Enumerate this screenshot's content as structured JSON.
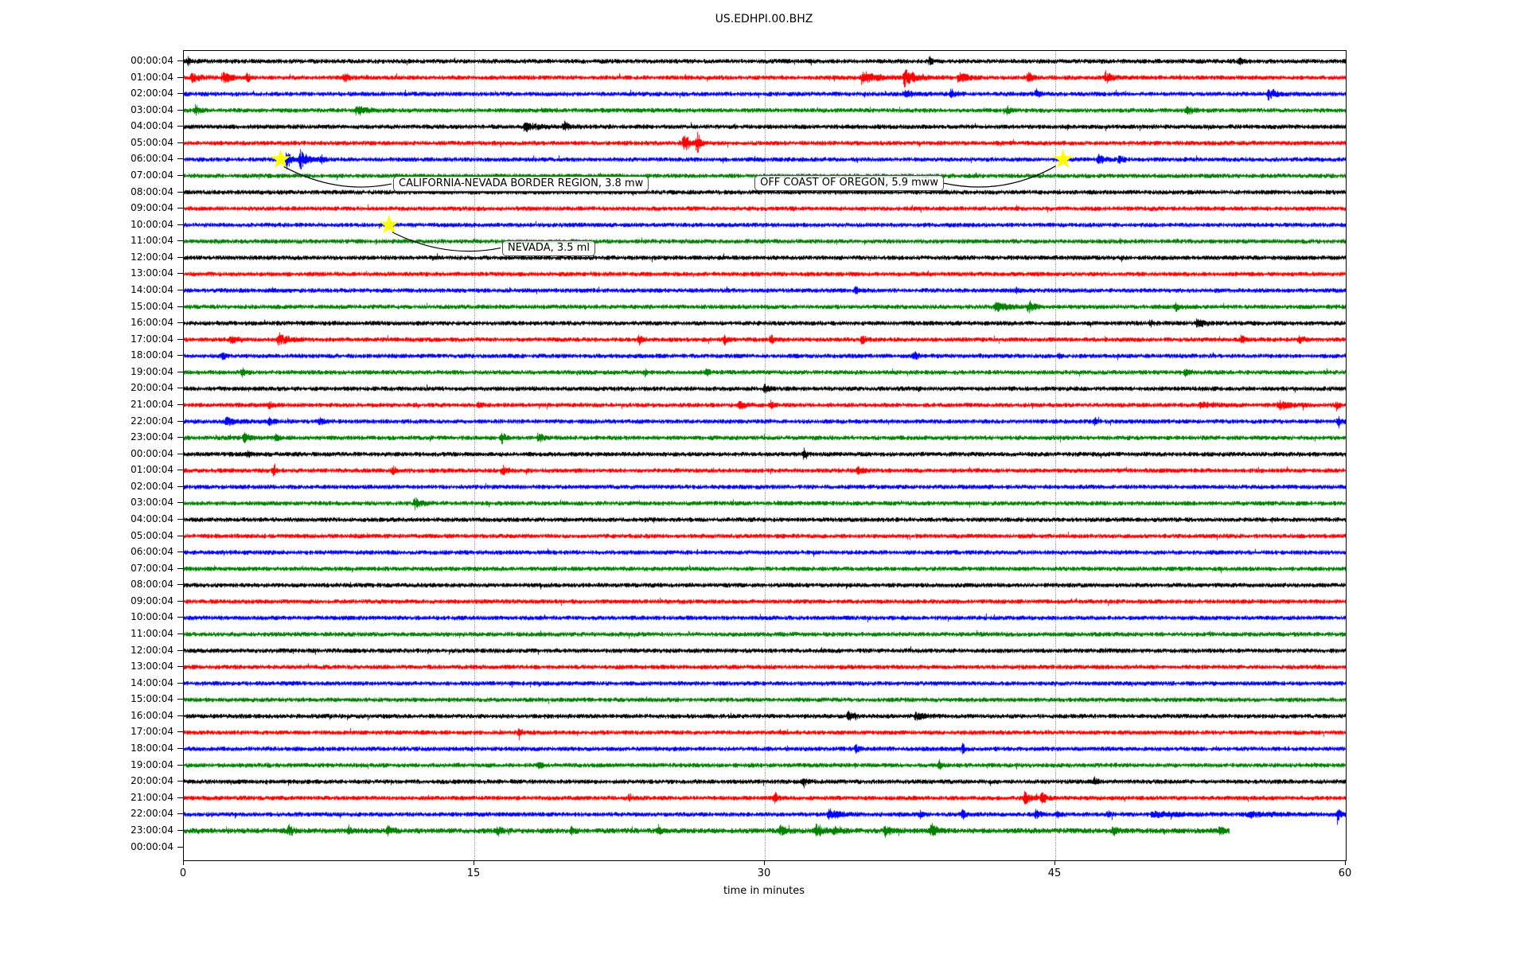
{
  "chart_data": {
    "type": "line",
    "subtype": "seismogram-helicorder-dayplot",
    "title": "US.EDHPI.00.BHZ",
    "xlabel": "time in minutes",
    "x_range": [
      0,
      60
    ],
    "x_ticks": [
      0,
      15,
      30,
      45,
      60
    ],
    "x_tick_labels": [
      "0",
      "15",
      "30",
      "45",
      "60"
    ],
    "x_gridlines": [
      15,
      30,
      45
    ],
    "grid_color": "#9a9a9a",
    "color_cycle": [
      "#000000",
      "#ff0000",
      "#0000ff",
      "#008000"
    ],
    "star_color": "#ffff00",
    "annotation_box": {
      "fill": "rgba(255,255,255,0.75)",
      "border": "#4d4d4d"
    },
    "rows": [
      {
        "label": "00:00:04",
        "events": [
          [
            0.2,
            0.3,
            5
          ],
          [
            38.5,
            0.3,
            5
          ],
          [
            54.5,
            0.2,
            6
          ]
        ]
      },
      {
        "label": "01:00:04",
        "events": [
          [
            0.4,
            0.8,
            7
          ],
          [
            2.0,
            0.8,
            8
          ],
          [
            3.2,
            0.4,
            7
          ],
          [
            8.3,
            0.3,
            9
          ],
          [
            35.0,
            1.6,
            9
          ],
          [
            37.2,
            1.2,
            10
          ],
          [
            40.0,
            0.8,
            8
          ],
          [
            43.6,
            0.4,
            8
          ],
          [
            47.6,
            0.6,
            8
          ]
        ]
      },
      {
        "label": "02:00:04",
        "events": [
          [
            37.2,
            0.8,
            5
          ],
          [
            39.6,
            0.6,
            6
          ],
          [
            44.0,
            0.4,
            6
          ],
          [
            56.0,
            0.7,
            9
          ]
        ]
      },
      {
        "label": "03:00:04",
        "events": [
          [
            0.6,
            0.3,
            8
          ],
          [
            8.9,
            0.9,
            7
          ],
          [
            42.5,
            0.4,
            5
          ],
          [
            51.8,
            0.5,
            6
          ]
        ]
      },
      {
        "label": "04:00:04",
        "events": [
          [
            17.6,
            1.2,
            6
          ],
          [
            19.6,
            0.7,
            6
          ]
        ]
      },
      {
        "label": "05:00:04",
        "events": [
          [
            25.8,
            0.5,
            14
          ],
          [
            26.5,
            0.3,
            18
          ]
        ]
      },
      {
        "label": "06:00:04",
        "events": [
          [
            5.3,
            0.5,
            13
          ],
          [
            6.0,
            0.8,
            11
          ],
          [
            7.1,
            0.4,
            6
          ],
          [
            47.2,
            0.7,
            6
          ],
          [
            48.3,
            0.4,
            5
          ]
        ]
      },
      {
        "label": "07:00:04",
        "events": []
      },
      {
        "label": "08:00:04",
        "events": []
      },
      {
        "label": "09:00:04",
        "events": []
      },
      {
        "label": "10:00:04",
        "events": []
      },
      {
        "label": "11:00:04",
        "events": []
      },
      {
        "label": "12:00:04",
        "events": []
      },
      {
        "label": "13:00:04",
        "events": []
      },
      {
        "label": "14:00:04",
        "events": [
          [
            34.7,
            0.3,
            5
          ],
          [
            43.0,
            0.2,
            4
          ]
        ]
      },
      {
        "label": "15:00:04",
        "events": [
          [
            41.9,
            1.0,
            7
          ],
          [
            43.6,
            0.7,
            7
          ],
          [
            51.2,
            0.4,
            5
          ]
        ]
      },
      {
        "label": "16:00:04",
        "events": [
          [
            49.9,
            0.3,
            5
          ],
          [
            52.3,
            0.7,
            6
          ]
        ]
      },
      {
        "label": "17:00:04",
        "events": [
          [
            2.4,
            0.8,
            6
          ],
          [
            4.9,
            1.0,
            8
          ],
          [
            23.5,
            0.4,
            6
          ],
          [
            27.9,
            0.4,
            5
          ],
          [
            30.3,
            0.4,
            6
          ],
          [
            35.0,
            0.4,
            6
          ],
          [
            54.6,
            0.4,
            6
          ],
          [
            57.6,
            0.4,
            6
          ]
        ]
      },
      {
        "label": "18:00:04",
        "events": [
          [
            2.0,
            0.3,
            5
          ],
          [
            37.7,
            0.4,
            6
          ],
          [
            45.2,
            0.2,
            4
          ]
        ]
      },
      {
        "label": "19:00:04",
        "events": [
          [
            3.0,
            0.3,
            6
          ],
          [
            23.8,
            0.3,
            5
          ],
          [
            27.0,
            0.3,
            4
          ],
          [
            51.7,
            0.4,
            6
          ]
        ]
      },
      {
        "label": "20:00:04",
        "events": [
          [
            30.0,
            0.4,
            6
          ]
        ]
      },
      {
        "label": "21:00:04",
        "events": [
          [
            4.4,
            0.4,
            6
          ],
          [
            15.2,
            0.3,
            5
          ],
          [
            28.7,
            0.5,
            6
          ],
          [
            30.3,
            0.3,
            5
          ],
          [
            52.5,
            1.5,
            4
          ],
          [
            56.5,
            1.5,
            5
          ],
          [
            59.5,
            0.3,
            7
          ]
        ]
      },
      {
        "label": "22:00:04",
        "events": [
          [
            2.2,
            0.7,
            6
          ],
          [
            4.4,
            0.4,
            5
          ],
          [
            7.0,
            0.4,
            6
          ],
          [
            47.0,
            0.3,
            5
          ],
          [
            59.6,
            0.3,
            9
          ]
        ]
      },
      {
        "label": "23:00:04",
        "events": [
          [
            3.1,
            0.5,
            6
          ],
          [
            4.7,
            0.4,
            5
          ],
          [
            16.4,
            0.4,
            7
          ],
          [
            18.3,
            0.3,
            9
          ]
        ]
      },
      {
        "label": "00:00:04",
        "events": [
          [
            3.3,
            0.3,
            5
          ],
          [
            32.0,
            0.3,
            7
          ]
        ]
      },
      {
        "label": "01:00:04",
        "events": [
          [
            4.6,
            0.3,
            6
          ],
          [
            10.8,
            0.4,
            5
          ],
          [
            16.5,
            0.4,
            6
          ],
          [
            34.8,
            0.5,
            6
          ]
        ]
      },
      {
        "label": "02:00:04",
        "events": []
      },
      {
        "label": "03:00:04",
        "events": [
          [
            11.9,
            0.7,
            7
          ]
        ]
      },
      {
        "label": "04:00:04",
        "events": []
      },
      {
        "label": "05:00:04",
        "events": []
      },
      {
        "label": "06:00:04",
        "events": []
      },
      {
        "label": "07:00:04",
        "events": []
      },
      {
        "label": "08:00:04",
        "events": []
      },
      {
        "label": "09:00:04",
        "events": []
      },
      {
        "label": "10:00:04",
        "events": []
      },
      {
        "label": "11:00:04",
        "events": []
      },
      {
        "label": "12:00:04",
        "events": []
      },
      {
        "label": "13:00:04",
        "events": []
      },
      {
        "label": "14:00:04",
        "events": []
      },
      {
        "label": "15:00:04",
        "events": []
      },
      {
        "label": "16:00:04",
        "events": [
          [
            34.3,
            0.7,
            6
          ],
          [
            37.8,
            0.9,
            6
          ]
        ]
      },
      {
        "label": "17:00:04",
        "events": [
          [
            17.3,
            0.2,
            9
          ]
        ]
      },
      {
        "label": "18:00:04",
        "events": [
          [
            34.7,
            0.3,
            6
          ],
          [
            40.2,
            0.3,
            6
          ]
        ]
      },
      {
        "label": "19:00:04",
        "events": [
          [
            18.3,
            0.3,
            5
          ],
          [
            39.0,
            0.3,
            7
          ]
        ]
      },
      {
        "label": "20:00:04",
        "events": [
          [
            32.0,
            0.3,
            7
          ],
          [
            47.0,
            0.3,
            5
          ]
        ]
      },
      {
        "label": "21:00:04",
        "events": [
          [
            23.0,
            0.2,
            6
          ],
          [
            30.5,
            0.3,
            7
          ],
          [
            43.4,
            0.8,
            9
          ],
          [
            44.3,
            0.4,
            7
          ]
        ]
      },
      {
        "label": "22:00:04",
        "events": [
          [
            33.3,
            1.2,
            6
          ],
          [
            38.0,
            0.3,
            5
          ],
          [
            40.2,
            0.3,
            6
          ],
          [
            44.0,
            0.4,
            7
          ],
          [
            45.1,
            0.3,
            5
          ],
          [
            47.7,
            0.3,
            5
          ],
          [
            50.0,
            3.0,
            3
          ],
          [
            55.0,
            3.5,
            3
          ],
          [
            59.6,
            0.3,
            8
          ]
        ]
      },
      {
        "label": "23:00:04",
        "base": 3.2,
        "end": 54,
        "events": [
          [
            5.4,
            0.4,
            8
          ],
          [
            8.5,
            0.5,
            5
          ],
          [
            10.5,
            0.5,
            6
          ],
          [
            16.2,
            0.4,
            5
          ],
          [
            20.0,
            0.3,
            5
          ],
          [
            24.5,
            0.3,
            6
          ],
          [
            30.8,
            0.6,
            7
          ],
          [
            32.6,
            0.7,
            9
          ],
          [
            33.6,
            0.5,
            8
          ],
          [
            36.2,
            0.7,
            7
          ],
          [
            38.6,
            0.5,
            9
          ],
          [
            48.0,
            0.3,
            6
          ],
          [
            53.5,
            0.4,
            7
          ]
        ]
      },
      {
        "label": "00:00:04",
        "trace": false,
        "events": []
      }
    ],
    "annotations": [
      {
        "text": "CALIFORNIA-NEVADA BORDER REGION, 3.8 mw",
        "star": {
          "row": 6,
          "minute": 5.0
        },
        "box": {
          "row": 7.49,
          "minute": 10.81
        },
        "attach": "left"
      },
      {
        "text": "OFF COAST OF OREGON, 5.9 mww",
        "star": {
          "row": 6,
          "minute": 45.4
        },
        "box": {
          "row": 7.45,
          "minute": 29.47
        },
        "attach": "right"
      },
      {
        "text": "NEVADA, 3.5 ml",
        "star": {
          "row": 10,
          "minute": 10.6
        },
        "box": {
          "row": 11.4,
          "minute": 16.44
        },
        "attach": "left"
      }
    ]
  }
}
